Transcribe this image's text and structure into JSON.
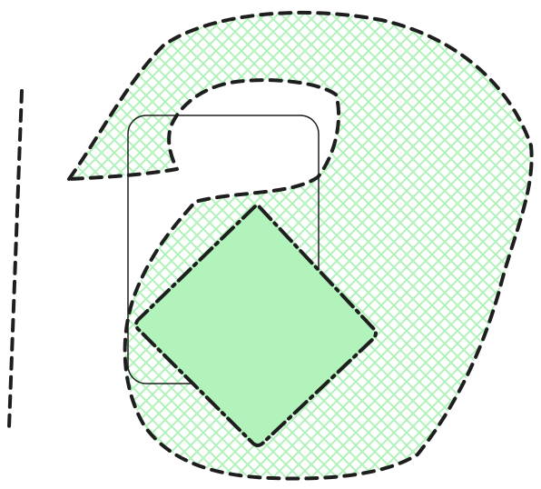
{
  "canvas": {
    "background": "#ffffff"
  },
  "shapes": {
    "hatched_blob": {
      "fill_pattern": "cross-hatch",
      "hatch_color": "#b2f2bb",
      "stroke_color": "#1e1e1e",
      "stroke_style": "dashed"
    },
    "rounded_rectangle": {
      "fill": "none",
      "stroke_color": "#1e1e1e",
      "stroke_style": "solid"
    },
    "diamond": {
      "fill_color": "#b2f2bb",
      "stroke_color": "#1e1e1e",
      "stroke_style": "dash-dot"
    },
    "vertical_line": {
      "stroke_color": "#1e1e1e",
      "stroke_style": "dashed"
    }
  }
}
